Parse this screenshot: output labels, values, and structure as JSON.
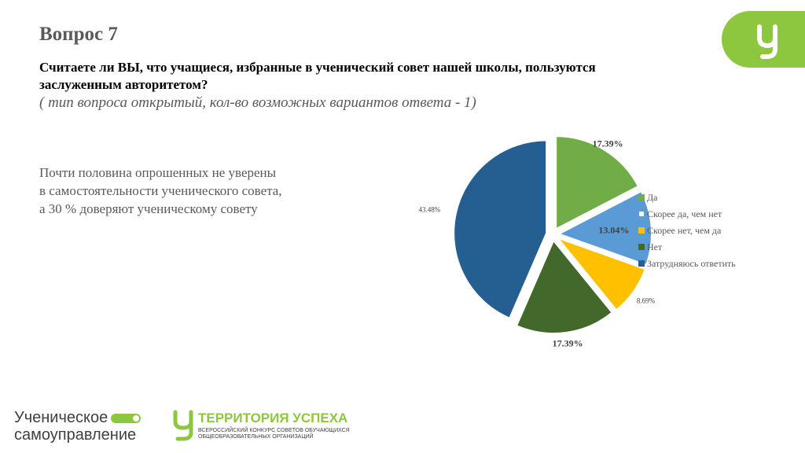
{
  "slide": {
    "title": "Вопрос 7",
    "question": "Считаете ли ВЫ, что учащиеся, избранные в ученический совет нашей школы, пользуются заслуженным авторитетом?",
    "question_type": "( тип вопроса открытый, кол-во возможных вариантов ответа - 1)",
    "summary_lines": [
      "Почти половина опрошенных не уверены",
      "в самостоятельности ученического совета,",
      "а 30 % доверяют ученическому совету"
    ]
  },
  "chart_data": {
    "type": "pie",
    "title": "",
    "series": [
      {
        "labels": [
          "Да",
          "Скорее да, чем нет",
          "Скорее нет, чем да",
          "Нет",
          "Затрудняюсь ответить"
        ],
        "values": [
          17.39,
          13.04,
          8.69,
          17.39,
          43.48
        ],
        "data_labels": [
          "17.39%",
          "13.04%",
          "8.69%",
          "17.39%",
          "43.48%"
        ],
        "colors": [
          "#70ad47",
          "#5b9bd5",
          "#ffc000",
          "#43682b",
          "#255e91"
        ]
      }
    ],
    "legend_position": "right",
    "start_angle_deg": 0,
    "exploded": true
  },
  "branding": {
    "corner_logo": "У",
    "logo1": {
      "line1": "Ученическое",
      "line2": "самоуправление"
    },
    "logo2": {
      "title": "ТЕРРИТОРИЯ УСПЕХА",
      "sub1": "ВСЕРОССИЙСКИЙ КОНКУРС СОВЕТОВ ОБУЧАЮЩИХСЯ",
      "sub2": "ОБЩЕОБРАЗОВАТЕЛЬНЫХ ОРГАНИЗАЦИЙ"
    },
    "accent_color": "#8dc63f"
  }
}
